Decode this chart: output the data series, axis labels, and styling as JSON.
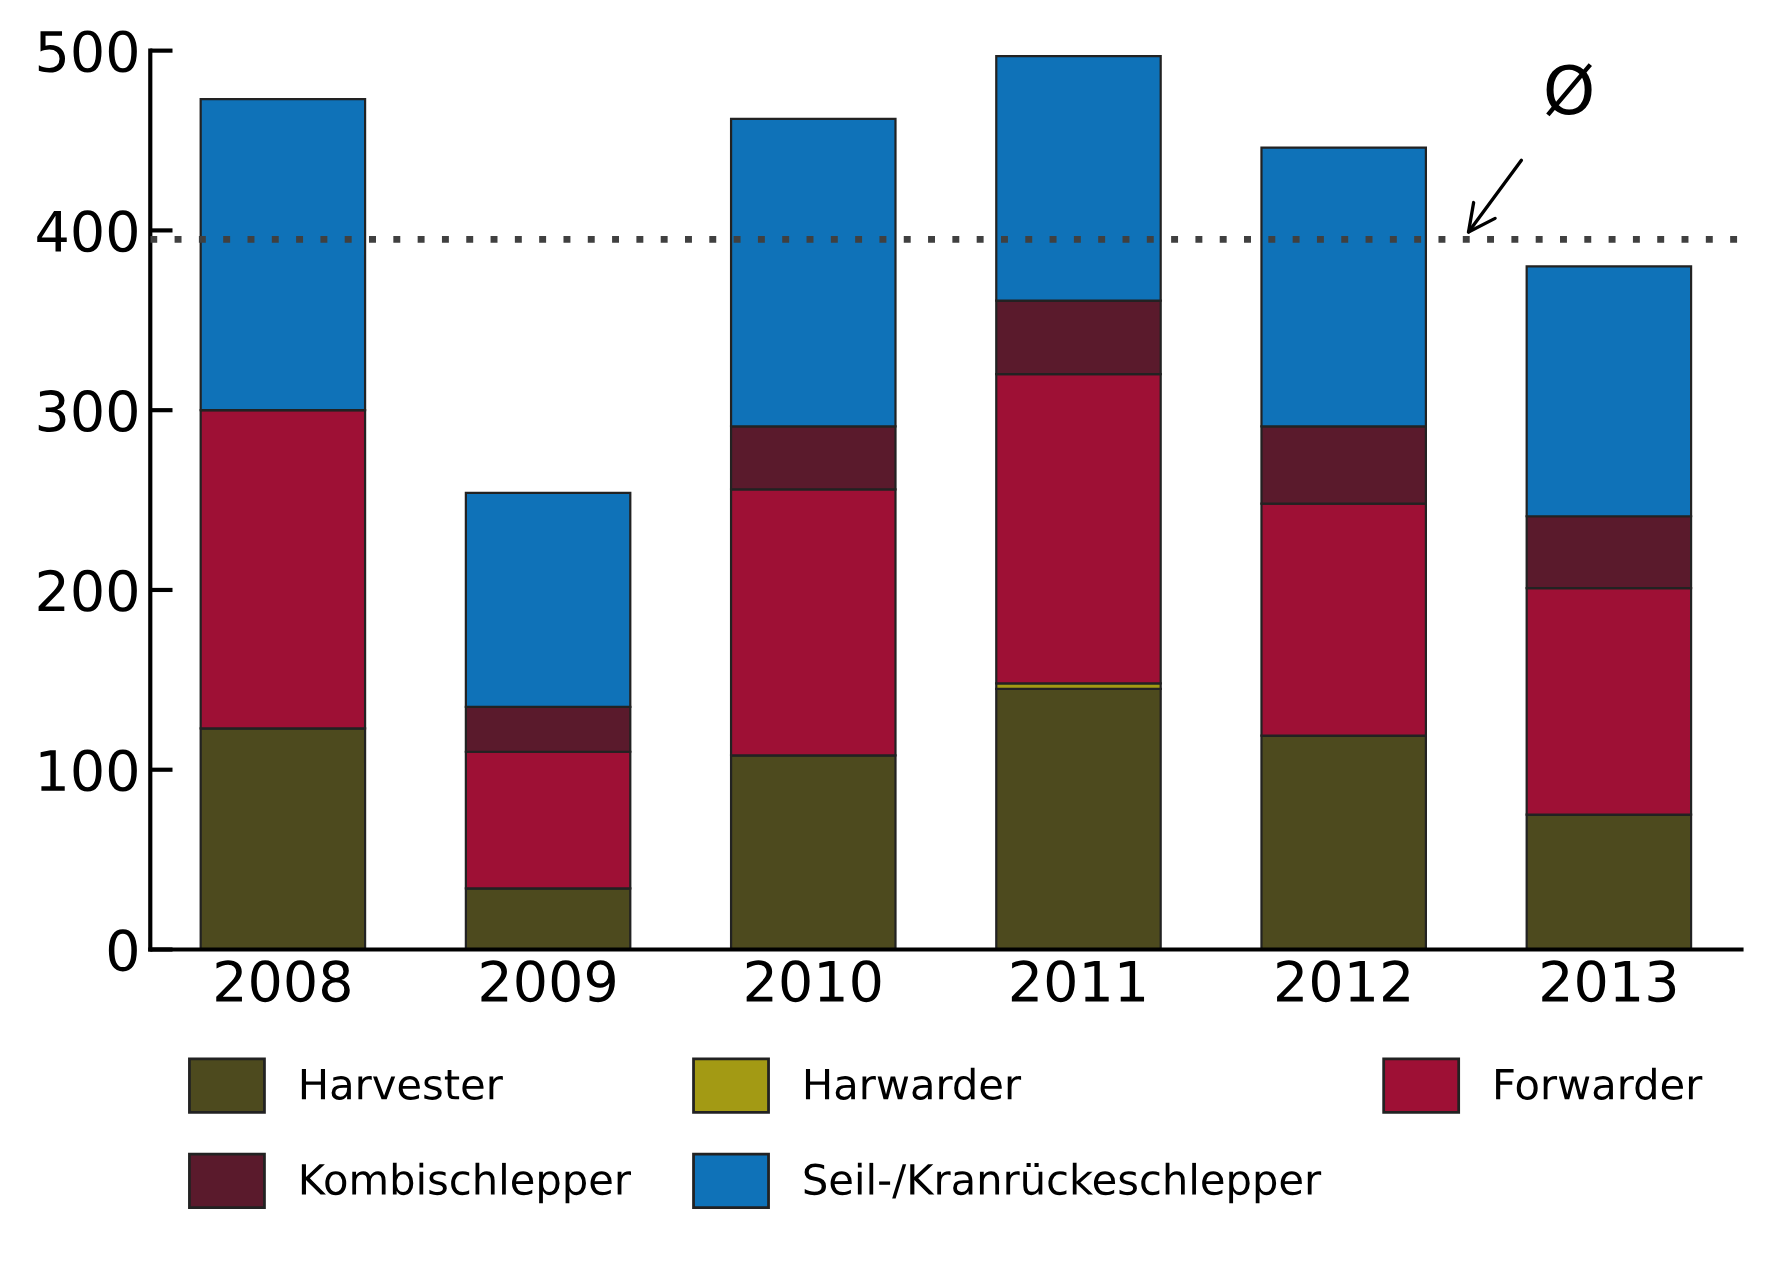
{
  "chart_data": {
    "type": "bar",
    "stacked": true,
    "categories": [
      "2008",
      "2009",
      "2010",
      "2011",
      "2012",
      "2013"
    ],
    "series": [
      {
        "name": "Harvester",
        "color": "#4d4a1e",
        "values": [
          123,
          34,
          108,
          145,
          119,
          75
        ]
      },
      {
        "name": "Harwarder",
        "color": "#a39a14",
        "values": [
          0,
          0,
          0,
          3,
          0,
          0
        ]
      },
      {
        "name": "Forwarder",
        "color": "#9e1035",
        "values": [
          177,
          76,
          148,
          172,
          129,
          126
        ]
      },
      {
        "name": "Kombischlepper",
        "color": "#5a1a2c",
        "values": [
          0,
          25,
          35,
          41,
          43,
          40
        ]
      },
      {
        "name": "Seil-/Kranrückeschlepper",
        "color": "#0f72b8",
        "values": [
          173,
          119,
          171,
          136,
          155,
          139
        ]
      }
    ],
    "ylim": [
      0,
      500
    ],
    "yticks": [
      0,
      100,
      200,
      300,
      400,
      500
    ],
    "grid": false,
    "legend": "bottom",
    "ref_lines": [
      {
        "axis": "y",
        "value": 395,
        "label": "Ø",
        "color": "#404040",
        "line_style": "dotted"
      }
    ]
  }
}
